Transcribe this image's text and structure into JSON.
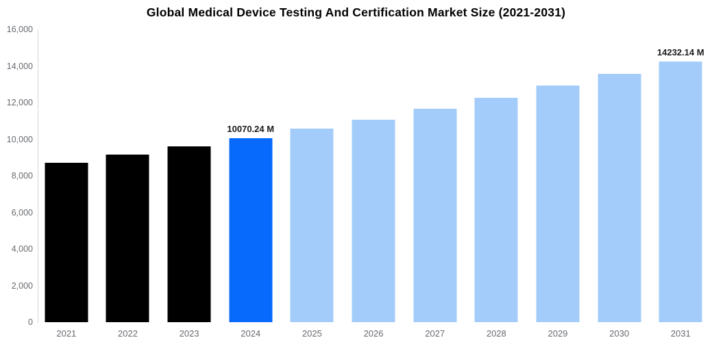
{
  "chart_data": {
    "type": "bar",
    "title": "Global Medical Device Testing And Certification Market Size (2021-2031)",
    "xlabel": "",
    "ylabel": "",
    "unit": "M",
    "categories": [
      "2021",
      "2022",
      "2023",
      "2024",
      "2025",
      "2026",
      "2027",
      "2028",
      "2029",
      "2030",
      "2031"
    ],
    "values": [
      8700,
      9150,
      9600,
      10070.24,
      10570,
      11080,
      11650,
      12280,
      12950,
      13580,
      14232.14
    ],
    "data_labels": [
      null,
      null,
      null,
      "10070.24 M",
      null,
      null,
      null,
      null,
      null,
      null,
      "14232.14 M"
    ],
    "bar_color_keys": [
      "historical",
      "historical",
      "historical",
      "current",
      "forecast",
      "forecast",
      "forecast",
      "forecast",
      "forecast",
      "forecast",
      "forecast"
    ],
    "colors": {
      "historical": "#000000",
      "current": "#086afc",
      "forecast": "#a3ccfa"
    },
    "ylim": [
      0,
      16000
    ],
    "yticks": [
      {
        "value": 0,
        "label": "0"
      },
      {
        "value": 2000,
        "label": "2,000"
      },
      {
        "value": 4000,
        "label": "4,000"
      },
      {
        "value": 6000,
        "label": "6,000"
      },
      {
        "value": 8000,
        "label": "8,000"
      },
      {
        "value": 10000,
        "label": "10,000"
      },
      {
        "value": 12000,
        "label": "12,000"
      },
      {
        "value": 14000,
        "label": "14,000"
      },
      {
        "value": 16000,
        "label": "16,000"
      }
    ],
    "grid": false,
    "legend": false,
    "axis_line_color": "#d4d4d4",
    "tick_label_color": "#66696e"
  }
}
